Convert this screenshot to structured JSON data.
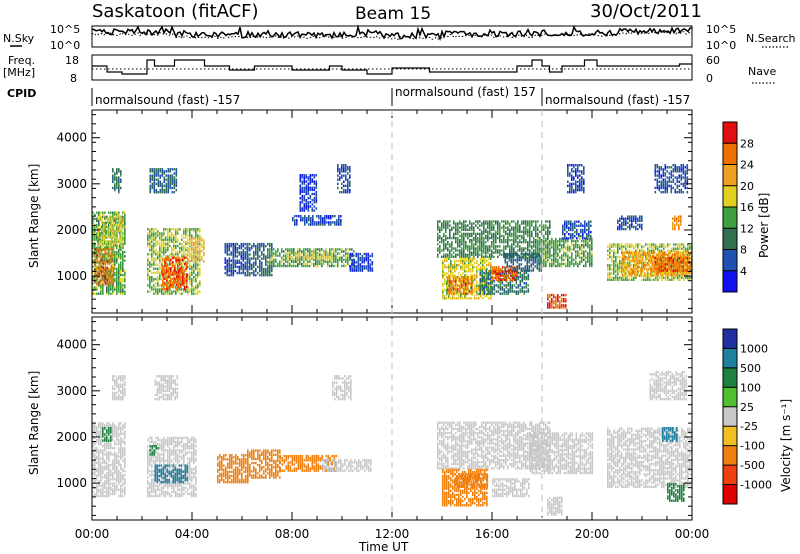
{
  "header": {
    "station": "Saskatoon (fitACF)",
    "beam": "Beam 15",
    "date": "30/Oct/2011"
  },
  "left_labels": {
    "nsky": "N.Sky",
    "freq_line1": "Freq.",
    "freq_line2": "[MHz]",
    "cpid": "CPID"
  },
  "right_labels": {
    "nsearch": "N.Search",
    "nave": "Nave"
  },
  "noise_panel": {
    "ticks_left": [
      "10^5",
      "10^0"
    ],
    "ticks_right": [
      "10^5",
      "10^0"
    ]
  },
  "freq_panel": {
    "ticks_left": [
      "18",
      "8"
    ],
    "ticks_right": [
      "60",
      "0"
    ]
  },
  "cpid_segments": [
    {
      "label": "normalsound (fast) -157",
      "start_hour": 0
    },
    {
      "label": "normalsound (fast) 157",
      "start_hour": 12
    },
    {
      "label": "normalsound (fast) -157",
      "start_hour": 18
    }
  ],
  "x_axis": {
    "title": "Time UT",
    "ticks": [
      "00:00",
      "04:00",
      "08:00",
      "12:00",
      "16:00",
      "20:00",
      "00:00"
    ],
    "range_hours": [
      0,
      24
    ]
  },
  "y_axis": {
    "title": "Slant Range [km]",
    "ticks": [
      "1000",
      "2000",
      "3000",
      "4000"
    ],
    "range_km": [
      200,
      4600
    ]
  },
  "power_scale": {
    "title": "Power [dB]",
    "ticks": [
      "4",
      "8",
      "12",
      "16",
      "20",
      "24",
      "28"
    ],
    "colors": [
      "#1010f0",
      "#2050b0",
      "#307050",
      "#40a040",
      "#e0d020",
      "#f0a020",
      "#f07000",
      "#e01010"
    ]
  },
  "velocity_scale": {
    "title": "Velocity [m s⁻¹]",
    "ticks": [
      "1000",
      "500",
      "100",
      "25",
      "-25",
      "-100",
      "-500",
      "-1000"
    ],
    "colors": [
      "#2030a0",
      "#2080a0",
      "#208040",
      "#50c030",
      "#c8c8c8",
      "#f0c020",
      "#f08010",
      "#f04010",
      "#e00000"
    ]
  },
  "chart_data": [
    {
      "type": "heatmap",
      "title": "Power [dB]",
      "xlabel": "Time UT",
      "ylabel": "Slant Range [km]",
      "xlim_hours": [
        0,
        24
      ],
      "ylim_km": [
        200,
        4600
      ],
      "cells": [
        {
          "t": [
            0.0,
            1.3
          ],
          "r": [
            600,
            2400
          ],
          "v": 14
        },
        {
          "t": [
            0.1,
            0.9
          ],
          "r": [
            800,
            1600
          ],
          "v": 26
        },
        {
          "t": [
            0.2,
            1.2
          ],
          "r": [
            1600,
            2300
          ],
          "v": 18
        },
        {
          "t": [
            0.8,
            1.2
          ],
          "r": [
            2800,
            3300
          ],
          "v": 10
        },
        {
          "t": [
            2.2,
            4.3
          ],
          "r": [
            600,
            2000
          ],
          "v": 16
        },
        {
          "t": [
            2.8,
            3.8
          ],
          "r": [
            700,
            1400
          ],
          "v": 27
        },
        {
          "t": [
            2.3,
            3.4
          ],
          "r": [
            2800,
            3300
          ],
          "v": 8
        },
        {
          "t": [
            3.8,
            4.5
          ],
          "r": [
            1300,
            1800
          ],
          "v": 20
        },
        {
          "t": [
            5.3,
            6.2
          ],
          "r": [
            1000,
            1700
          ],
          "v": 6
        },
        {
          "t": [
            6.2,
            7.2
          ],
          "r": [
            1000,
            1700
          ],
          "v": 8
        },
        {
          "t": [
            7.0,
            10.5
          ],
          "r": [
            1200,
            1600
          ],
          "v": 14
        },
        {
          "t": [
            7.8,
            9.6
          ],
          "r": [
            1350,
            1500
          ],
          "v": 18
        },
        {
          "t": [
            8.0,
            10.0
          ],
          "r": [
            2100,
            2300
          ],
          "v": 6
        },
        {
          "t": [
            8.3,
            9.0
          ],
          "r": [
            2400,
            3200
          ],
          "v": 5
        },
        {
          "t": [
            9.8,
            10.3
          ],
          "r": [
            2800,
            3400
          ],
          "v": 6
        },
        {
          "t": [
            10.3,
            11.2
          ],
          "r": [
            1100,
            1500
          ],
          "v": 5
        },
        {
          "t": [
            13.8,
            18.3
          ],
          "r": [
            1400,
            2200
          ],
          "v": 12
        },
        {
          "t": [
            14.0,
            16.0
          ],
          "r": [
            500,
            1400
          ],
          "v": 18
        },
        {
          "t": [
            14.2,
            15.2
          ],
          "r": [
            600,
            1000
          ],
          "v": 26
        },
        {
          "t": [
            15.5,
            17.5
          ],
          "r": [
            600,
            1100
          ],
          "v": 10
        },
        {
          "t": [
            16.0,
            17.0
          ],
          "r": [
            900,
            1200
          ],
          "v": 27
        },
        {
          "t": [
            16.5,
            18.0
          ],
          "r": [
            1100,
            1500
          ],
          "v": 8
        },
        {
          "t": [
            17.8,
            20.0
          ],
          "r": [
            1200,
            1800
          ],
          "v": 14
        },
        {
          "t": [
            18.2,
            19.0
          ],
          "r": [
            300,
            600
          ],
          "v": 28
        },
        {
          "t": [
            18.8,
            20.0
          ],
          "r": [
            1800,
            2200
          ],
          "v": 6
        },
        {
          "t": [
            19.0,
            19.7
          ],
          "r": [
            2800,
            3400
          ],
          "v": 6
        },
        {
          "t": [
            20.6,
            24.0
          ],
          "r": [
            900,
            1700
          ],
          "v": 16
        },
        {
          "t": [
            21.2,
            24.0
          ],
          "r": [
            1000,
            1500
          ],
          "v": 22
        },
        {
          "t": [
            22.5,
            24.0
          ],
          "r": [
            1100,
            1400
          ],
          "v": 27
        },
        {
          "t": [
            23.2,
            23.6
          ],
          "r": [
            2000,
            2300
          ],
          "v": 24
        },
        {
          "t": [
            21.0,
            22.0
          ],
          "r": [
            2000,
            2300
          ],
          "v": 6
        },
        {
          "t": [
            22.5,
            23.8
          ],
          "r": [
            2800,
            3400
          ],
          "v": 6
        }
      ]
    },
    {
      "type": "heatmap",
      "title": "Velocity [m s⁻¹]",
      "xlabel": "Time UT",
      "ylabel": "Slant Range [km]",
      "xlim_hours": [
        0,
        24
      ],
      "ylim_km": [
        200,
        4600
      ],
      "cells": [
        {
          "t": [
            0.0,
            1.3
          ],
          "r": [
            700,
            2300
          ],
          "v": 0
        },
        {
          "t": [
            0.8,
            1.3
          ],
          "r": [
            2800,
            3300
          ],
          "v": 0
        },
        {
          "t": [
            0.4,
            0.8
          ],
          "r": [
            1900,
            2200
          ],
          "v": 120
        },
        {
          "t": [
            2.2,
            4.2
          ],
          "r": [
            700,
            2000
          ],
          "v": 0
        },
        {
          "t": [
            2.5,
            3.8
          ],
          "r": [
            1000,
            1400
          ],
          "v": 600
        },
        {
          "t": [
            2.3,
            2.7
          ],
          "r": [
            1600,
            1800
          ],
          "v": 200
        },
        {
          "t": [
            2.5,
            3.4
          ],
          "r": [
            2800,
            3300
          ],
          "v": 0
        },
        {
          "t": [
            5.0,
            6.2
          ],
          "r": [
            1000,
            1600
          ],
          "v": -300
        },
        {
          "t": [
            6.2,
            7.5
          ],
          "r": [
            1100,
            1700
          ],
          "v": -200
        },
        {
          "t": [
            7.5,
            9.8
          ],
          "r": [
            1250,
            1600
          ],
          "v": -400
        },
        {
          "t": [
            9.2,
            11.2
          ],
          "r": [
            1250,
            1500
          ],
          "v": 0
        },
        {
          "t": [
            9.6,
            10.4
          ],
          "r": [
            2800,
            3300
          ],
          "v": 0
        },
        {
          "t": [
            13.8,
            18.3
          ],
          "r": [
            1300,
            2300
          ],
          "v": 0
        },
        {
          "t": [
            14.0,
            15.8
          ],
          "r": [
            500,
            1300
          ],
          "v": -120
        },
        {
          "t": [
            14.5,
            15.8
          ],
          "r": [
            900,
            1200
          ],
          "v": -300
        },
        {
          "t": [
            16.0,
            17.5
          ],
          "r": [
            700,
            1100
          ],
          "v": 0
        },
        {
          "t": [
            17.5,
            20.0
          ],
          "r": [
            1200,
            2100
          ],
          "v": 0
        },
        {
          "t": [
            18.2,
            18.8
          ],
          "r": [
            300,
            700
          ],
          "v": 0
        },
        {
          "t": [
            20.6,
            24.0
          ],
          "r": [
            900,
            2200
          ],
          "v": 0
        },
        {
          "t": [
            22.8,
            23.4
          ],
          "r": [
            1900,
            2200
          ],
          "v": 600
        },
        {
          "t": [
            23.0,
            23.7
          ],
          "r": [
            600,
            1000
          ],
          "v": 150
        },
        {
          "t": [
            22.3,
            23.8
          ],
          "r": [
            2800,
            3400
          ],
          "v": 0
        }
      ]
    }
  ]
}
